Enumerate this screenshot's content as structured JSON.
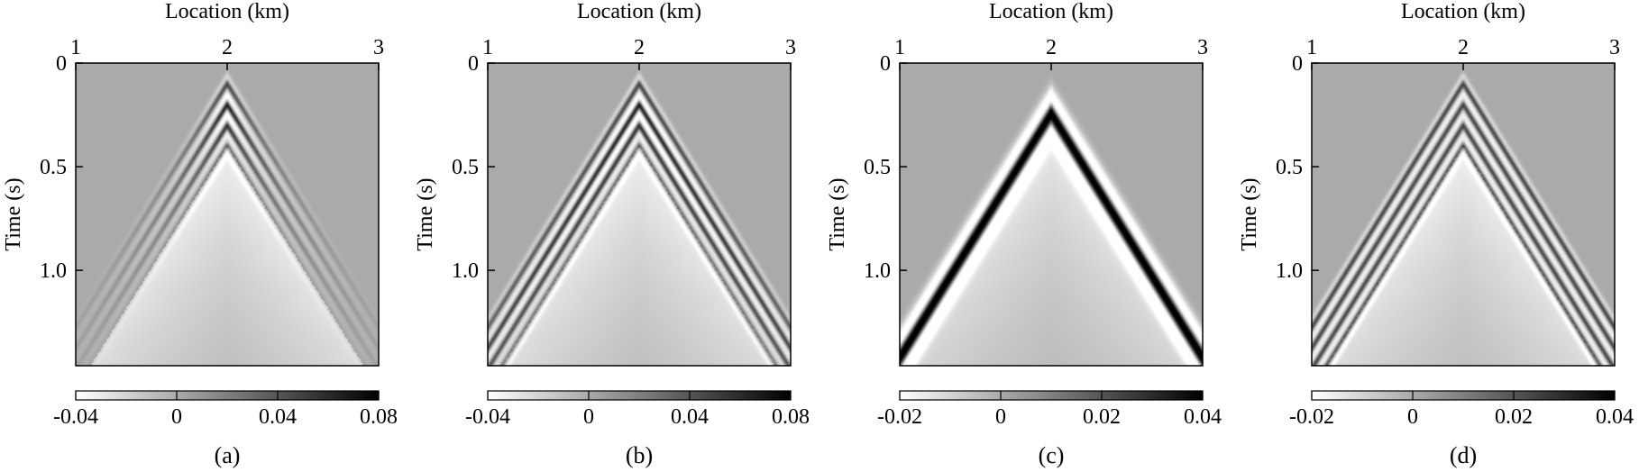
{
  "chart_data": [
    {
      "type": "heatmap",
      "panel_label": "(a)",
      "xlabel": "Location (km)",
      "ylabel": "Time (s)",
      "xlim": [
        1,
        3
      ],
      "ylim": [
        0,
        1.46
      ],
      "y_inverted": true,
      "x_ticks": [
        "1",
        "2",
        "3"
      ],
      "y_ticks": [
        "0",
        "0.5",
        "1.0"
      ],
      "colorbar": {
        "min": -0.04,
        "max": 0.08,
        "ticks": [
          "-0.04",
          "0",
          "0.04",
          "0.08"
        ]
      },
      "colormap": "white-to-black",
      "apex": {
        "x": 2,
        "t": 0
      },
      "wave_velocity_km_per_s": 0.85,
      "event_delays_s": [
        0.1,
        0.2,
        0.3,
        0.4
      ],
      "event_amplitudes": [
        0.05,
        0.07,
        0.06,
        0.04
      ],
      "amplitude_decay": "strong"
    },
    {
      "type": "heatmap",
      "panel_label": "(b)",
      "xlabel": "Location (km)",
      "ylabel": "Time (s)",
      "xlim": [
        1,
        3
      ],
      "ylim": [
        0,
        1.46
      ],
      "y_inverted": true,
      "x_ticks": [
        "1",
        "2",
        "3"
      ],
      "y_ticks": [
        "0",
        "0.5",
        "1.0"
      ],
      "colorbar": {
        "min": -0.04,
        "max": 0.08,
        "ticks": [
          "-0.04",
          "0",
          "0.04",
          "0.08"
        ]
      },
      "colormap": "white-to-black",
      "apex": {
        "x": 2,
        "t": 0
      },
      "wave_velocity_km_per_s": 0.85,
      "event_delays_s": [
        0.1,
        0.2,
        0.3,
        0.4
      ],
      "event_amplitudes": [
        0.05,
        0.07,
        0.06,
        0.04
      ],
      "amplitude_decay": "weak"
    },
    {
      "type": "heatmap",
      "panel_label": "(c)",
      "xlabel": "Location (km)",
      "ylabel": "Time (s)",
      "xlim": [
        1,
        3
      ],
      "ylim": [
        0,
        1.46
      ],
      "y_inverted": true,
      "x_ticks": [
        "1",
        "2",
        "3"
      ],
      "y_ticks": [
        "0",
        "0.5",
        "1.0"
      ],
      "colorbar": {
        "min": -0.02,
        "max": 0.04,
        "ticks": [
          "-0.02",
          "0",
          "0.02",
          "0.04"
        ]
      },
      "colormap": "white-to-black",
      "apex": {
        "x": 2,
        "t": 0
      },
      "wave_velocity_km_per_s": 0.85,
      "event_delays_s": [
        0.25
      ],
      "event_amplitudes": [
        0.06
      ],
      "amplitude_decay": "none"
    },
    {
      "type": "heatmap",
      "panel_label": "(d)",
      "xlabel": "Location (km)",
      "ylabel": "Time (s)",
      "xlim": [
        1,
        3
      ],
      "ylim": [
        0,
        1.46
      ],
      "y_inverted": true,
      "x_ticks": [
        "1",
        "2",
        "3"
      ],
      "y_ticks": [
        "0",
        "0.5",
        "1.0"
      ],
      "colorbar": {
        "min": -0.02,
        "max": 0.04,
        "ticks": [
          "-0.02",
          "0",
          "0.02",
          "0.04"
        ]
      },
      "colormap": "white-to-black",
      "apex": {
        "x": 2,
        "t": 0
      },
      "wave_velocity_km_per_s": 0.85,
      "event_delays_s": [
        0.1,
        0.2,
        0.3,
        0.4
      ],
      "event_amplitudes": [
        0.025,
        0.025,
        0.025,
        0.025
      ],
      "amplitude_decay": "none"
    }
  ]
}
